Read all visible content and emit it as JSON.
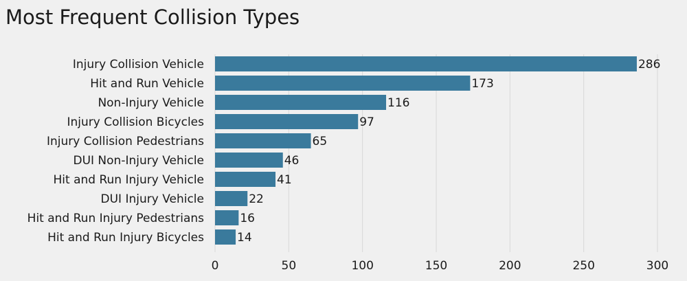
{
  "chart_data": {
    "type": "bar",
    "orientation": "horizontal",
    "title": "Most Frequent Collision Types",
    "xlabel": "",
    "ylabel": "",
    "categories": [
      "Injury Collision Vehicle",
      "Hit and Run Vehicle",
      "Non-Injury Vehicle",
      "Injury Collision Bicycles",
      "Injury Collision Pedestrians",
      "DUI Non-Injury Vehicle",
      "Hit and Run Injury Vehicle",
      "DUI Injury Vehicle",
      "Hit and Run Injury Pedestrians",
      "Hit and Run Injury Bicycles"
    ],
    "values": [
      286,
      173,
      116,
      97,
      65,
      46,
      41,
      22,
      16,
      14
    ],
    "xlim": [
      0,
      300
    ],
    "xticks": [
      0,
      50,
      100,
      150,
      200,
      250,
      300
    ],
    "grid": true,
    "legend": "none",
    "bar_color": "#3a7a9c",
    "grid_color": "#d8d8d8",
    "background_color": "#f0f0f0"
  }
}
